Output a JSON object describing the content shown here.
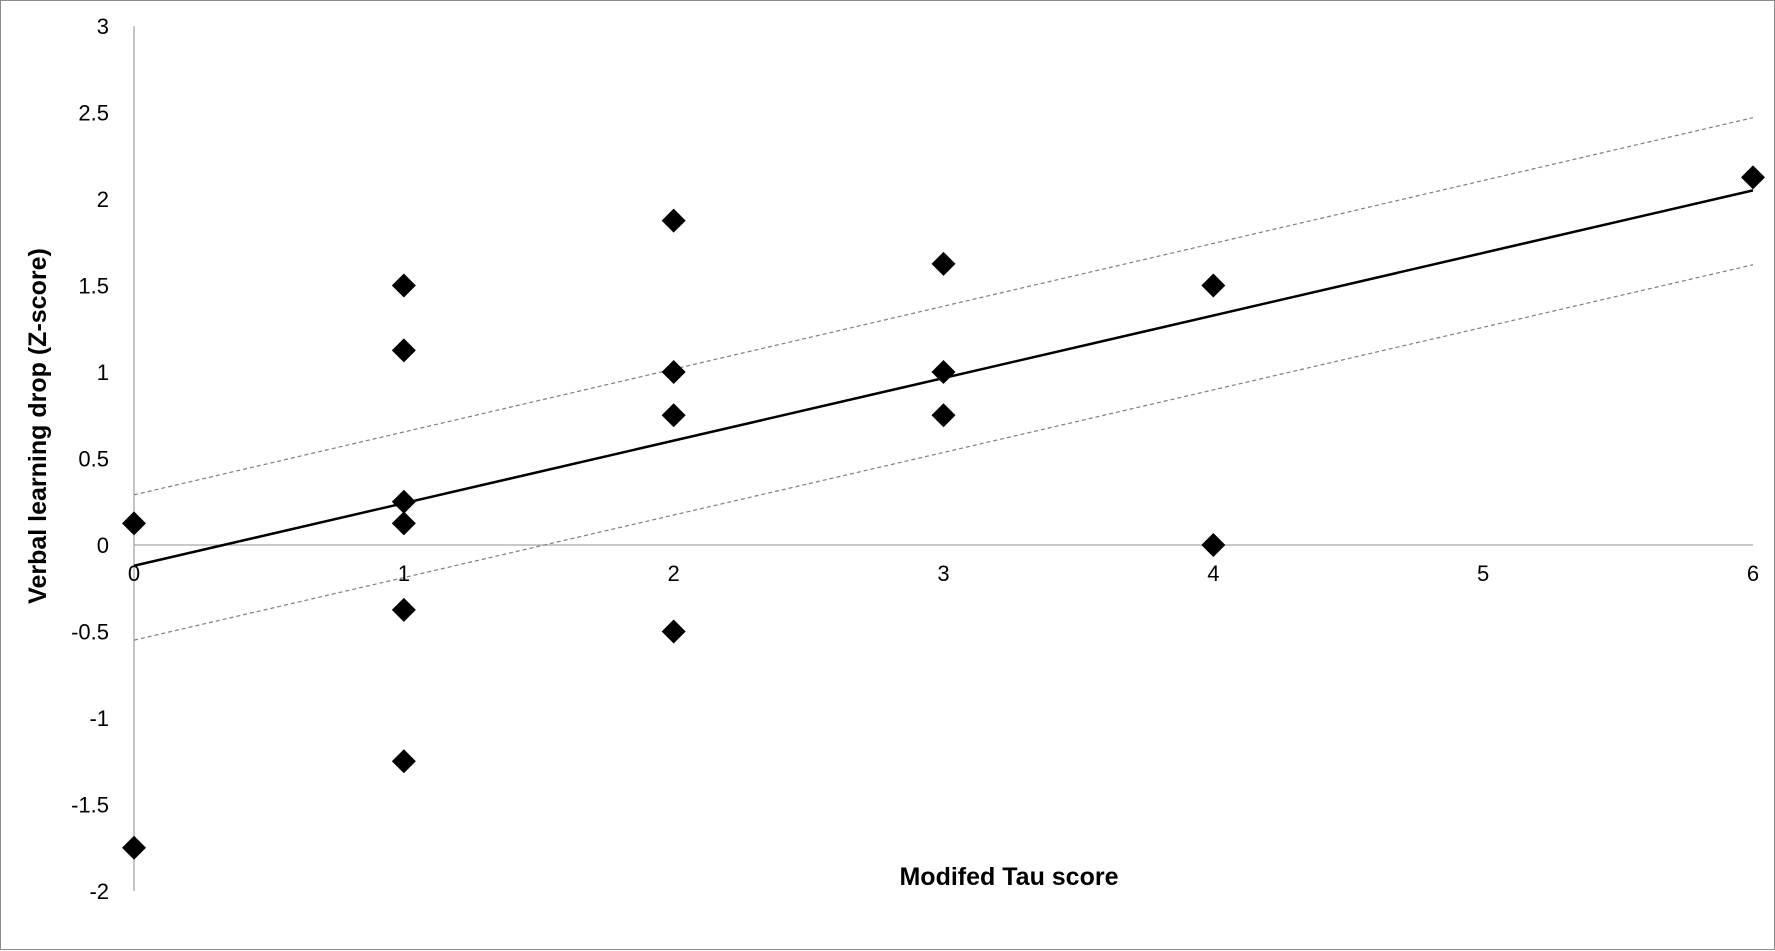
{
  "chart_data": {
    "type": "scatter",
    "title": "",
    "xlabel": "Modifed Tau score",
    "ylabel": "Verbal learning drop (Z-score)",
    "xlim": [
      0,
      6
    ],
    "ylim": [
      -2,
      3
    ],
    "x_ticks": [
      "0",
      "1",
      "2",
      "3",
      "4",
      "5",
      "6"
    ],
    "y_ticks": [
      "3",
      "2.5",
      "2",
      "1.5",
      "1",
      "0.5",
      "0",
      "-0.5",
      "-1",
      "-1.5",
      "-2"
    ],
    "grid": false,
    "legend": "none",
    "marker": "diamond",
    "series": [
      {
        "points": [
          {
            "x": 0,
            "y": 0.125
          },
          {
            "x": 0,
            "y": -1.75
          },
          {
            "x": 1,
            "y": 1.5
          },
          {
            "x": 1,
            "y": 1.125
          },
          {
            "x": 1,
            "y": 0.25
          },
          {
            "x": 1,
            "y": 0.125
          },
          {
            "x": 1,
            "y": -0.375
          },
          {
            "x": 1,
            "y": -1.25
          },
          {
            "x": 2,
            "y": 1.875
          },
          {
            "x": 2,
            "y": 1.0
          },
          {
            "x": 2,
            "y": 0.75
          },
          {
            "x": 2,
            "y": -0.5
          },
          {
            "x": 3,
            "y": 1.625
          },
          {
            "x": 3,
            "y": 1.0
          },
          {
            "x": 3,
            "y": 0.75
          },
          {
            "x": 4,
            "y": 1.5
          },
          {
            "x": 4,
            "y": 0.0
          },
          {
            "x": 6,
            "y": 2.125
          }
        ]
      }
    ],
    "lines": [
      {
        "role": "regression",
        "style": "solid",
        "x": [
          0,
          6
        ],
        "y": [
          -0.12,
          2.05
        ]
      },
      {
        "role": "upper-bound",
        "style": "dashed",
        "x": [
          0,
          6
        ],
        "y": [
          0.29,
          2.47
        ]
      },
      {
        "role": "lower-bound",
        "style": "dashed",
        "x": [
          0,
          6
        ],
        "y": [
          -0.55,
          1.62
        ]
      }
    ],
    "colors": {
      "marker": "#000000",
      "regression": "#000000",
      "bounds": "#7f7f7f",
      "axis": "#a6a6a6"
    }
  }
}
